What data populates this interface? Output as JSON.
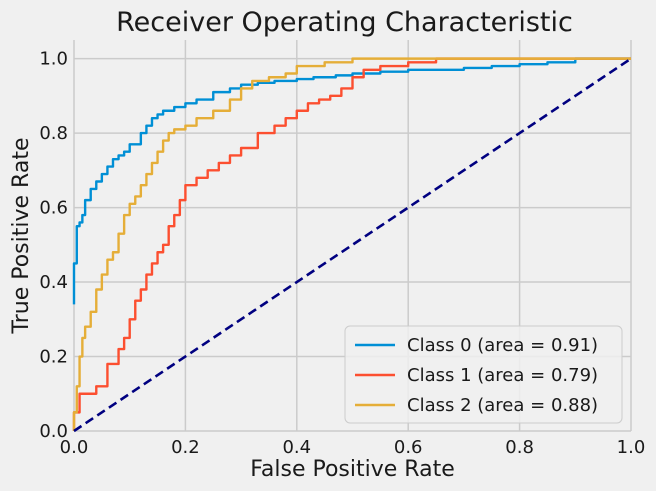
{
  "chart_data": {
    "type": "line",
    "title": "Receiver Operating Characteristic",
    "xlabel": "False Positive Rate",
    "ylabel": "True Positive Rate",
    "xlim": [
      0.0,
      1.0
    ],
    "ylim": [
      0.0,
      1.05
    ],
    "xticks": [
      "0.0",
      "0.2",
      "0.4",
      "0.6",
      "0.8",
      "1.0"
    ],
    "yticks": [
      "0.0",
      "0.2",
      "0.4",
      "0.6",
      "0.8",
      "1.0"
    ],
    "grid": true,
    "legend_position": "lower-right",
    "series": [
      {
        "name": "Class 0 (area = 0.91)",
        "color": "#008fd5",
        "style": "solid",
        "x": [
          0,
          0.005,
          0.01,
          0.015,
          0.02,
          0.03,
          0.04,
          0.05,
          0.06,
          0.07,
          0.08,
          0.09,
          0.1,
          0.12,
          0.13,
          0.14,
          0.15,
          0.16,
          0.18,
          0.2,
          0.22,
          0.25,
          0.28,
          0.3,
          0.33,
          0.36,
          0.4,
          0.43,
          0.47,
          0.5,
          0.55,
          0.6,
          0.65,
          0.7,
          0.75,
          0.8,
          0.85,
          0.9,
          0.95,
          1.0
        ],
        "y": [
          0.34,
          0.45,
          0.55,
          0.56,
          0.58,
          0.62,
          0.65,
          0.67,
          0.69,
          0.71,
          0.73,
          0.74,
          0.75,
          0.77,
          0.8,
          0.82,
          0.84,
          0.85,
          0.86,
          0.87,
          0.88,
          0.89,
          0.91,
          0.92,
          0.93,
          0.935,
          0.94,
          0.945,
          0.95,
          0.955,
          0.96,
          0.965,
          0.97,
          0.97,
          0.975,
          0.98,
          0.985,
          0.99,
          1.0,
          1.0
        ]
      },
      {
        "name": "Class 1 (area = 0.79)",
        "color": "#fc4f30",
        "style": "solid",
        "x": [
          0,
          0.01,
          0.02,
          0.04,
          0.06,
          0.08,
          0.09,
          0.1,
          0.11,
          0.12,
          0.13,
          0.14,
          0.15,
          0.16,
          0.17,
          0.18,
          0.19,
          0.2,
          0.22,
          0.24,
          0.26,
          0.28,
          0.3,
          0.33,
          0.36,
          0.38,
          0.4,
          0.42,
          0.44,
          0.46,
          0.48,
          0.5,
          0.52,
          0.55,
          0.6,
          0.65,
          0.7,
          0.75,
          0.8,
          0.9,
          1.0
        ],
        "y": [
          0.0,
          0.05,
          0.1,
          0.1,
          0.12,
          0.18,
          0.22,
          0.25,
          0.3,
          0.35,
          0.38,
          0.42,
          0.45,
          0.48,
          0.5,
          0.55,
          0.58,
          0.62,
          0.66,
          0.68,
          0.7,
          0.72,
          0.74,
          0.76,
          0.8,
          0.82,
          0.84,
          0.86,
          0.88,
          0.89,
          0.9,
          0.92,
          0.95,
          0.97,
          0.98,
          0.99,
          1.0,
          1.0,
          1.0,
          1.0,
          1.0
        ]
      },
      {
        "name": "Class 2 (area = 0.88)",
        "color": "#e5ae38",
        "style": "solid",
        "x": [
          0,
          0.005,
          0.01,
          0.015,
          0.02,
          0.03,
          0.04,
          0.05,
          0.06,
          0.07,
          0.08,
          0.09,
          0.1,
          0.11,
          0.12,
          0.13,
          0.14,
          0.15,
          0.16,
          0.17,
          0.18,
          0.2,
          0.22,
          0.25,
          0.28,
          0.3,
          0.32,
          0.35,
          0.38,
          0.4,
          0.45,
          0.5,
          0.55,
          0.6,
          0.7,
          0.8,
          0.9,
          1.0
        ],
        "y": [
          0.0,
          0.05,
          0.12,
          0.2,
          0.25,
          0.28,
          0.32,
          0.38,
          0.42,
          0.46,
          0.48,
          0.53,
          0.58,
          0.61,
          0.63,
          0.66,
          0.69,
          0.72,
          0.75,
          0.78,
          0.8,
          0.81,
          0.82,
          0.84,
          0.86,
          0.89,
          0.92,
          0.94,
          0.95,
          0.96,
          0.98,
          0.99,
          1.0,
          1.0,
          1.0,
          1.0,
          1.0,
          1.0
        ]
      },
      {
        "name": "",
        "color": "#000080",
        "style": "dashed",
        "x": [
          0,
          1
        ],
        "y": [
          0,
          1
        ]
      }
    ]
  }
}
